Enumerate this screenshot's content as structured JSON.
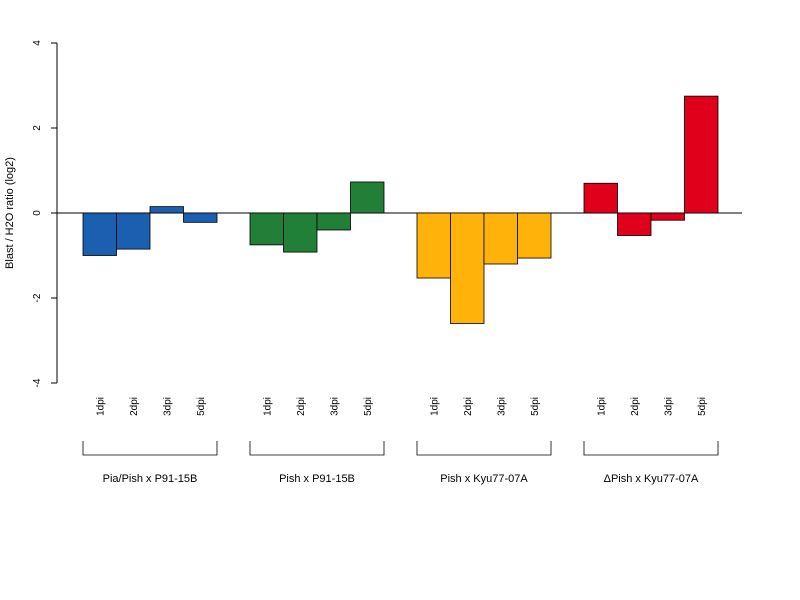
{
  "chart_data": {
    "type": "bar",
    "ylabel": "Blast / H2O ratio (log2)",
    "ylim": [
      -4,
      4
    ],
    "yticks": [
      -4,
      -2,
      0,
      2,
      4
    ],
    "grid": false,
    "groups": [
      {
        "name": "Pia/Pish x P91-15B",
        "color": "#1a5fb0",
        "categories": [
          "1dpi",
          "2dpi",
          "3dpi",
          "5dpi"
        ],
        "values": [
          -1.0,
          -0.85,
          0.15,
          -0.22
        ]
      },
      {
        "name": "Pish x P91-15B",
        "color": "#217f37",
        "categories": [
          "1dpi",
          "2dpi",
          "3dpi",
          "5dpi"
        ],
        "values": [
          -0.75,
          -0.92,
          -0.4,
          0.73
        ]
      },
      {
        "name": "Pish x Kyu77-07A",
        "color": "#ffb30a",
        "categories": [
          "1dpi",
          "2dpi",
          "3dpi",
          "5dpi"
        ],
        "values": [
          -1.53,
          -2.6,
          -1.2,
          -1.06
        ]
      },
      {
        "name": "ΔPish x Kyu77-07A",
        "color": "#e0001b",
        "categories": [
          "1dpi",
          "2dpi",
          "3dpi",
          "5dpi"
        ],
        "values": [
          0.7,
          -0.53,
          -0.17,
          2.75
        ]
      }
    ]
  }
}
